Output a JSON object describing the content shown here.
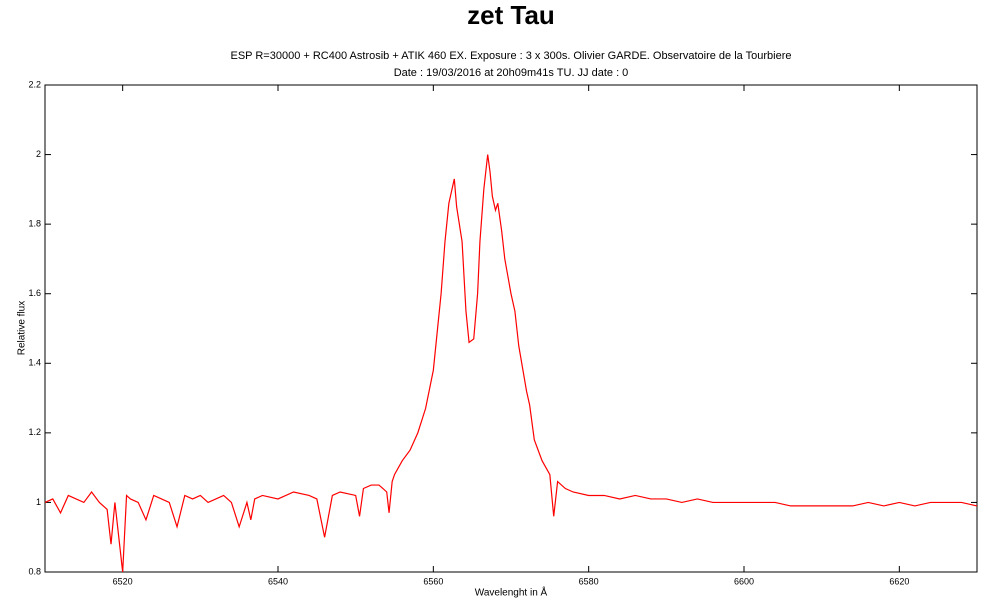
{
  "chart_data": {
    "type": "line",
    "title": "zet Tau",
    "subtitle": [
      "ESP R=30000 + RC400 Astrosib + ATIK 460 EX. Exposure : 3 x 300s. Olivier GARDE. Observatoire de la Tourbiere",
      "Date : 19/03/2016 at 20h09m41s TU. JJ date : 0"
    ],
    "x_label": "Wavelenght in Å",
    "y_label": "Relative flux",
    "xlim": [
      6510,
      6630
    ],
    "ylim": [
      0.8,
      2.2
    ],
    "xticks": [
      6520,
      6540,
      6560,
      6580,
      6600,
      6620
    ],
    "yticks": [
      0.8,
      1,
      1.2,
      1.4,
      1.6,
      1.8,
      2,
      2.2
    ],
    "grid": false,
    "color": "#ff0000",
    "x": [
      6510,
      6511,
      6512,
      6513,
      6514,
      6515,
      6516,
      6517,
      6518,
      6518.5,
      6519,
      6520,
      6520.5,
      6521,
      6522,
      6523,
      6524,
      6525,
      6526,
      6527,
      6528,
      6529,
      6530,
      6531,
      6532,
      6533,
      6534,
      6535,
      6536,
      6536.5,
      6537,
      6538,
      6540,
      6542,
      6544,
      6545,
      6546,
      6547,
      6548,
      6550,
      6550.5,
      6551,
      6552,
      6553,
      6554,
      6554.3,
      6554.7,
      6555,
      6556,
      6557,
      6558,
      6559,
      6560,
      6561,
      6561.5,
      6562,
      6562.7,
      6563,
      6563.7,
      6564.2,
      6564.6,
      6565.2,
      6565.7,
      6566,
      6566.5,
      6567,
      6567.3,
      6567.6,
      6568,
      6568.3,
      6568.8,
      6569.2,
      6570,
      6570.5,
      6571,
      6572,
      6572.4,
      6573,
      6574,
      6575,
      6575.5,
      6576,
      6577,
      6578,
      6580,
      6582,
      6584,
      6586,
      6588,
      6590,
      6592,
      6594,
      6596,
      6598,
      6600,
      6602,
      6604,
      6606,
      6608,
      6610,
      6612,
      6614,
      6616,
      6618,
      6620,
      6622,
      6624,
      6626,
      6628,
      6630
    ],
    "values": [
      1.0,
      1.01,
      0.97,
      1.02,
      1.01,
      1.0,
      1.03,
      1.0,
      0.98,
      0.88,
      1.0,
      0.8,
      1.02,
      1.01,
      1.0,
      0.95,
      1.02,
      1.01,
      1.0,
      0.93,
      1.02,
      1.01,
      1.02,
      1.0,
      1.01,
      1.02,
      1.0,
      0.93,
      1.0,
      0.95,
      1.01,
      1.02,
      1.01,
      1.03,
      1.02,
      1.01,
      0.9,
      1.02,
      1.03,
      1.02,
      0.96,
      1.04,
      1.05,
      1.05,
      1.03,
      0.97,
      1.06,
      1.08,
      1.12,
      1.15,
      1.2,
      1.27,
      1.38,
      1.6,
      1.75,
      1.86,
      1.93,
      1.85,
      1.75,
      1.55,
      1.46,
      1.47,
      1.6,
      1.75,
      1.9,
      2.0,
      1.95,
      1.88,
      1.84,
      1.86,
      1.78,
      1.7,
      1.6,
      1.55,
      1.45,
      1.32,
      1.28,
      1.18,
      1.12,
      1.08,
      0.96,
      1.06,
      1.04,
      1.03,
      1.02,
      1.02,
      1.01,
      1.02,
      1.01,
      1.01,
      1.0,
      1.01,
      1.0,
      1.0,
      1.0,
      1.0,
      1.0,
      0.99,
      0.99,
      0.99,
      0.99,
      0.99,
      1.0,
      0.99,
      1.0,
      0.99,
      1.0,
      1.0,
      1.0,
      0.99
    ]
  }
}
